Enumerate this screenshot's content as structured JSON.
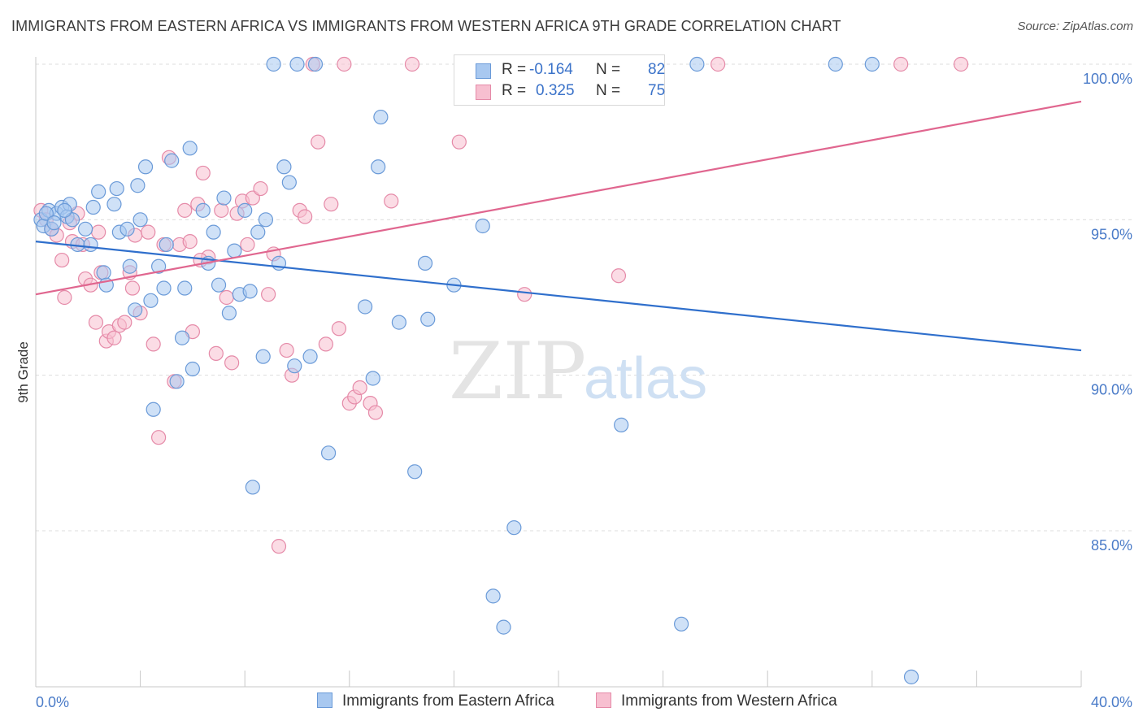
{
  "title": "IMMIGRANTS FROM EASTERN AFRICA VS IMMIGRANTS FROM WESTERN AFRICA 9TH GRADE CORRELATION CHART",
  "source": "Source: ZipAtlas.com",
  "watermark": {
    "zip": "ZIP",
    "atlas": "atlas"
  },
  "legend": {
    "r_label": "R =",
    "n_label": "N =",
    "entries": [
      {
        "r": "-0.164",
        "n": "82"
      },
      {
        "r": "0.325",
        "n": "75"
      }
    ]
  },
  "colors": {
    "blue_fill": "#a8c8f0",
    "blue_stroke": "#6a9ad8",
    "blue_line": "#2f6fcc",
    "pink_fill": "#f7bfd0",
    "pink_stroke": "#e58aa8",
    "pink_line": "#e0668f",
    "axis_text": "#4a7bc8",
    "grid": "#dcdcdc"
  },
  "chart_data": {
    "type": "scatter",
    "title": "IMMIGRANTS FROM EASTERN AFRICA VS IMMIGRANTS FROM WESTERN AFRICA 9TH GRADE CORRELATION CHART",
    "xlabel": "",
    "ylabel": "9th Grade",
    "xlim": [
      0,
      40
    ],
    "ylim": [
      80,
      100.5
    ],
    "x_tick_labels": [
      "0.0%",
      "40.0%"
    ],
    "y_ticks": [
      85,
      90,
      95,
      100
    ],
    "y_tick_labels": [
      "85.0%",
      "90.0%",
      "95.0%",
      "100.0%"
    ],
    "grid": "dashed horizontal",
    "legend_position": "top-center",
    "series": [
      {
        "name": "Immigrants from Eastern Africa",
        "color": "#a8c8f0",
        "trend": {
          "x": [
            0,
            40
          ],
          "y": [
            94.3,
            90.8
          ]
        },
        "points": [
          [
            0.2,
            95.0
          ],
          [
            0.3,
            94.8
          ],
          [
            0.5,
            95.3
          ],
          [
            0.6,
            94.7
          ],
          [
            0.8,
            95.2
          ],
          [
            1.0,
            95.4
          ],
          [
            1.2,
            95.1
          ],
          [
            1.3,
            95.5
          ],
          [
            1.4,
            95.0
          ],
          [
            1.6,
            94.2
          ],
          [
            1.9,
            94.7
          ],
          [
            2.1,
            94.2
          ],
          [
            2.2,
            95.4
          ],
          [
            2.4,
            95.9
          ],
          [
            2.6,
            93.3
          ],
          [
            2.7,
            92.9
          ],
          [
            3.0,
            95.5
          ],
          [
            3.1,
            96.0
          ],
          [
            3.2,
            94.6
          ],
          [
            3.5,
            94.7
          ],
          [
            3.6,
            93.5
          ],
          [
            3.8,
            92.1
          ],
          [
            3.9,
            96.1
          ],
          [
            4.0,
            95.0
          ],
          [
            4.2,
            96.7
          ],
          [
            4.4,
            92.4
          ],
          [
            4.5,
            88.9
          ],
          [
            4.7,
            93.5
          ],
          [
            4.9,
            92.8
          ],
          [
            5.0,
            94.2
          ],
          [
            5.2,
            96.9
          ],
          [
            5.4,
            89.8
          ],
          [
            5.6,
            91.2
          ],
          [
            5.7,
            92.8
          ],
          [
            5.9,
            97.3
          ],
          [
            6.0,
            90.2
          ],
          [
            6.4,
            95.3
          ],
          [
            6.6,
            93.6
          ],
          [
            6.8,
            94.6
          ],
          [
            7.0,
            92.9
          ],
          [
            7.2,
            95.7
          ],
          [
            7.4,
            92.0
          ],
          [
            7.6,
            94.0
          ],
          [
            7.8,
            92.6
          ],
          [
            8.0,
            95.3
          ],
          [
            8.2,
            92.7
          ],
          [
            8.3,
            86.4
          ],
          [
            8.5,
            94.6
          ],
          [
            8.7,
            90.6
          ],
          [
            8.8,
            95.0
          ],
          [
            9.1,
            100.0
          ],
          [
            9.3,
            93.6
          ],
          [
            9.5,
            96.7
          ],
          [
            9.7,
            96.2
          ],
          [
            9.9,
            90.3
          ],
          [
            10.0,
            100.0
          ],
          [
            10.5,
            90.6
          ],
          [
            10.7,
            100.0
          ],
          [
            11.2,
            87.5
          ],
          [
            12.6,
            92.2
          ],
          [
            12.9,
            89.9
          ],
          [
            13.1,
            96.7
          ],
          [
            13.2,
            98.3
          ],
          [
            13.9,
            91.7
          ],
          [
            14.5,
            86.9
          ],
          [
            14.9,
            93.6
          ],
          [
            15.0,
            91.8
          ],
          [
            16.0,
            92.9
          ],
          [
            17.1,
            94.8
          ],
          [
            17.5,
            82.9
          ],
          [
            17.8,
            99.9
          ],
          [
            17.9,
            81.9
          ],
          [
            18.3,
            85.1
          ],
          [
            22.4,
            88.4
          ],
          [
            24.7,
            82.0
          ],
          [
            25.3,
            100.0
          ],
          [
            30.6,
            100.0
          ],
          [
            32.0,
            100.0
          ],
          [
            33.5,
            80.3
          ],
          [
            0.4,
            95.2
          ],
          [
            0.7,
            94.9
          ],
          [
            1.1,
            95.3
          ]
        ]
      },
      {
        "name": "Immigrants from Western Africa",
        "color": "#f7bfd0",
        "trend": {
          "x": [
            0,
            40
          ],
          "y": [
            92.6,
            98.8
          ]
        },
        "points": [
          [
            0.2,
            95.3
          ],
          [
            0.4,
            95.0
          ],
          [
            0.6,
            94.7
          ],
          [
            0.8,
            94.5
          ],
          [
            1.0,
            93.7
          ],
          [
            1.1,
            92.5
          ],
          [
            1.4,
            94.3
          ],
          [
            1.6,
            95.2
          ],
          [
            1.8,
            94.2
          ],
          [
            1.9,
            93.1
          ],
          [
            2.1,
            92.9
          ],
          [
            2.3,
            91.7
          ],
          [
            2.5,
            93.3
          ],
          [
            2.7,
            91.1
          ],
          [
            2.8,
            91.4
          ],
          [
            3.0,
            91.2
          ],
          [
            3.2,
            91.6
          ],
          [
            3.4,
            91.7
          ],
          [
            3.6,
            93.3
          ],
          [
            3.8,
            94.5
          ],
          [
            4.0,
            92.0
          ],
          [
            4.3,
            94.6
          ],
          [
            4.5,
            91.0
          ],
          [
            4.7,
            88.0
          ],
          [
            4.9,
            94.2
          ],
          [
            5.1,
            97.0
          ],
          [
            5.3,
            89.8
          ],
          [
            5.5,
            94.2
          ],
          [
            5.7,
            95.3
          ],
          [
            5.9,
            94.3
          ],
          [
            6.0,
            91.4
          ],
          [
            6.2,
            95.5
          ],
          [
            6.4,
            96.5
          ],
          [
            6.6,
            93.8
          ],
          [
            6.9,
            90.7
          ],
          [
            7.1,
            95.3
          ],
          [
            7.3,
            92.5
          ],
          [
            7.5,
            90.4
          ],
          [
            7.7,
            95.2
          ],
          [
            7.9,
            95.6
          ],
          [
            8.1,
            94.2
          ],
          [
            8.3,
            95.7
          ],
          [
            8.6,
            96.0
          ],
          [
            8.9,
            92.6
          ],
          [
            9.1,
            93.9
          ],
          [
            9.3,
            84.5
          ],
          [
            9.6,
            90.8
          ],
          [
            9.8,
            90.0
          ],
          [
            10.1,
            95.3
          ],
          [
            10.3,
            95.1
          ],
          [
            10.6,
            100.0
          ],
          [
            10.8,
            97.5
          ],
          [
            11.1,
            91.0
          ],
          [
            11.3,
            95.5
          ],
          [
            11.6,
            91.5
          ],
          [
            11.8,
            100.0
          ],
          [
            12.0,
            89.1
          ],
          [
            12.2,
            89.3
          ],
          [
            12.4,
            89.6
          ],
          [
            12.8,
            89.1
          ],
          [
            13.0,
            88.8
          ],
          [
            13.6,
            95.6
          ],
          [
            14.4,
            100.0
          ],
          [
            16.2,
            97.5
          ],
          [
            16.4,
            100.0
          ],
          [
            18.7,
            92.6
          ],
          [
            22.3,
            93.2
          ],
          [
            23.4,
            100.0
          ],
          [
            26.1,
            100.0
          ],
          [
            33.1,
            100.0
          ],
          [
            35.4,
            100.0
          ],
          [
            1.3,
            94.9
          ],
          [
            2.4,
            94.6
          ],
          [
            3.7,
            92.8
          ],
          [
            6.3,
            93.7
          ]
        ]
      }
    ]
  },
  "bottom_legend": [
    "Immigrants from Eastern Africa",
    "Immigrants from Western Africa"
  ]
}
